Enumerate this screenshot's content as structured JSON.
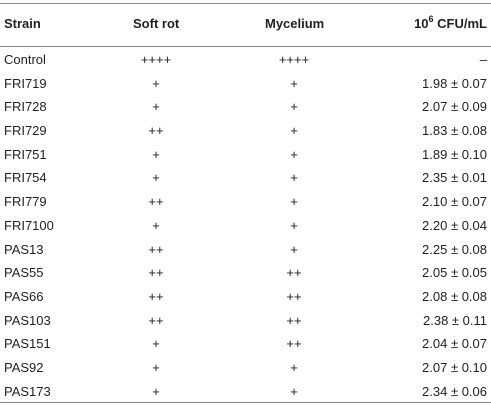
{
  "table": {
    "headers": {
      "strain": "Strain",
      "soft_rot": "Soft rot",
      "mycelium": "Mycelium",
      "cfu_prefix": "10",
      "cfu_exp": "6",
      "cfu_suffix": " CFU/mL"
    },
    "rows": [
      {
        "strain": "Control",
        "soft_rot": "++++",
        "mycelium": "++++",
        "cfu": "–"
      },
      {
        "strain": "FRI719",
        "soft_rot": "+",
        "mycelium": "+",
        "cfu": "1.98 ± 0.07"
      },
      {
        "strain": "FRI728",
        "soft_rot": "+",
        "mycelium": "+",
        "cfu": "2.07 ± 0.09"
      },
      {
        "strain": "FRI729",
        "soft_rot": "++",
        "mycelium": "+",
        "cfu": "1.83 ± 0.08"
      },
      {
        "strain": "FRI751",
        "soft_rot": "+",
        "mycelium": "+",
        "cfu": "1.89 ± 0.10"
      },
      {
        "strain": "FRI754",
        "soft_rot": "+",
        "mycelium": "+",
        "cfu": "2.35 ± 0.01"
      },
      {
        "strain": "FRI779",
        "soft_rot": "++",
        "mycelium": "+",
        "cfu": "2.10 ± 0.07"
      },
      {
        "strain": "FRI7100",
        "soft_rot": "+",
        "mycelium": "+",
        "cfu": "2.20 ± 0.04"
      },
      {
        "strain": "PAS13",
        "soft_rot": "++",
        "mycelium": "+",
        "cfu": "2.25 ± 0.08"
      },
      {
        "strain": "PAS55",
        "soft_rot": "++",
        "mycelium": "++",
        "cfu": "2.05 ± 0.05"
      },
      {
        "strain": "PAS66",
        "soft_rot": "++",
        "mycelium": "++",
        "cfu": "2.08 ± 0.08"
      },
      {
        "strain": "PAS103",
        "soft_rot": "++",
        "mycelium": "++",
        "cfu": "2.38 ± 0.11"
      },
      {
        "strain": "PAS151",
        "soft_rot": "+",
        "mycelium": "++",
        "cfu": "2.04 ± 0.07"
      },
      {
        "strain": "PAS92",
        "soft_rot": "+",
        "mycelium": "+",
        "cfu": "2.07 ± 0.10"
      },
      {
        "strain": "PAS173",
        "soft_rot": "+",
        "mycelium": "+",
        "cfu": "2.34 ± 0.06"
      }
    ]
  }
}
